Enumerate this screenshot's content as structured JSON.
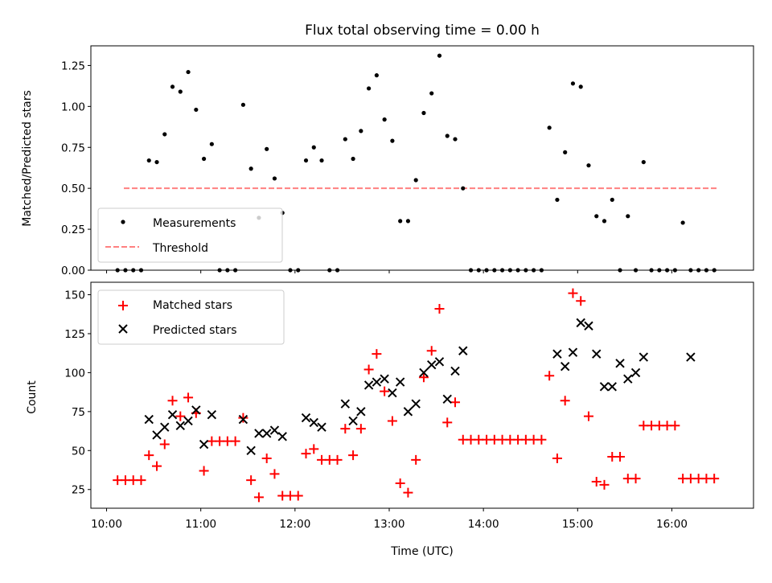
{
  "chart_data": [
    {
      "type": "scatter",
      "title": "Flux total observing time = 0.00 h",
      "xlabel": "",
      "ylabel": "Matched/Predicted stars",
      "xlim": [
        "09:50",
        "16:52"
      ],
      "ylim": [
        0,
        1.37
      ],
      "yticks": [
        "0.00",
        "0.25",
        "0.50",
        "0.75",
        "1.00",
        "1.25"
      ],
      "grid": false,
      "legend": "lower-left",
      "series": [
        {
          "name": "Measurements",
          "kind": "points",
          "color": "#000000",
          "x": [
            "10:07",
            "10:12",
            "10:17",
            "10:22",
            "10:27",
            "10:32",
            "10:37",
            "10:42",
            "10:47",
            "10:52",
            "10:57",
            "11:02",
            "11:07",
            "11:12",
            "11:17",
            "11:22",
            "11:27",
            "11:32",
            "11:37",
            "11:42",
            "11:47",
            "11:52",
            "11:57",
            "12:02",
            "12:07",
            "12:12",
            "12:17",
            "12:22",
            "12:27",
            "12:32",
            "12:37",
            "12:42",
            "12:47",
            "12:52",
            "12:57",
            "13:02",
            "13:07",
            "13:12",
            "13:17",
            "13:22",
            "13:27",
            "13:32",
            "13:37",
            "13:42",
            "13:47",
            "13:52",
            "13:57",
            "14:02",
            "14:07",
            "14:12",
            "14:17",
            "14:22",
            "14:27",
            "14:32",
            "14:37",
            "14:42",
            "14:47",
            "14:52",
            "14:57",
            "15:02",
            "15:07",
            "15:12",
            "15:17",
            "15:22",
            "15:27",
            "15:32",
            "15:37",
            "15:42",
            "15:47",
            "15:52",
            "15:57",
            "16:02",
            "16:07",
            "16:12",
            "16:17",
            "16:22",
            "16:27"
          ],
          "y": [
            0,
            0,
            0,
            0,
            0.67,
            0.66,
            0.83,
            1.12,
            1.09,
            1.21,
            0.98,
            0.68,
            0.77,
            0,
            0,
            0,
            1.01,
            0.62,
            0.32,
            0.74,
            0.56,
            0.35,
            0,
            0,
            0.67,
            0.75,
            0.67,
            0,
            0,
            0.8,
            0.68,
            0.85,
            1.11,
            1.19,
            0.92,
            0.79,
            0.3,
            0.3,
            0.55,
            0.96,
            1.08,
            1.31,
            0.82,
            0.8,
            0.5,
            0,
            0,
            0,
            0,
            0,
            0,
            0,
            0,
            0,
            0,
            0.87,
            0.43,
            0.72,
            1.14,
            1.12,
            0.64,
            0.33,
            0.3,
            0.43,
            0,
            0.33,
            0,
            0.66,
            0,
            0,
            0,
            0,
            0.29,
            0,
            0,
            0,
            0
          ]
        },
        {
          "name": "Threshold",
          "kind": "dashed-line",
          "color": "#ff8080",
          "x": [
            "10:11",
            "16:30"
          ],
          "y": [
            0.5,
            0.5
          ]
        }
      ]
    },
    {
      "type": "scatter",
      "title": "",
      "xlabel": "Time (UTC)",
      "ylabel": "Count",
      "xlim": [
        "09:50",
        "16:52"
      ],
      "ylim": [
        13,
        158
      ],
      "xticks": [
        "10:00",
        "11:00",
        "12:00",
        "13:00",
        "14:00",
        "15:00",
        "16:00"
      ],
      "yticks": [
        "25",
        "50",
        "75",
        "100",
        "125",
        "150"
      ],
      "grid": false,
      "legend": "upper-left",
      "series": [
        {
          "name": "Matched stars",
          "marker": "plus",
          "color": "#ff0000",
          "x": [
            "10:07",
            "10:12",
            "10:17",
            "10:22",
            "10:27",
            "10:32",
            "10:37",
            "10:42",
            "10:47",
            "10:52",
            "10:57",
            "11:02",
            "11:07",
            "11:12",
            "11:17",
            "11:22",
            "11:27",
            "11:32",
            "11:37",
            "11:42",
            "11:47",
            "11:52",
            "11:57",
            "12:02",
            "12:07",
            "12:12",
            "12:17",
            "12:22",
            "12:27",
            "12:32",
            "12:37",
            "12:42",
            "12:47",
            "12:52",
            "12:57",
            "13:02",
            "13:07",
            "13:12",
            "13:17",
            "13:22",
            "13:27",
            "13:32",
            "13:37",
            "13:42",
            "13:47",
            "13:52",
            "13:57",
            "14:02",
            "14:07",
            "14:12",
            "14:17",
            "14:22",
            "14:27",
            "14:32",
            "14:37",
            "14:42",
            "14:47",
            "14:52",
            "14:57",
            "15:02",
            "15:07",
            "15:12",
            "15:17",
            "15:22",
            "15:27",
            "15:32",
            "15:37",
            "15:42",
            "15:47",
            "15:52",
            "15:57",
            "16:02",
            "16:07",
            "16:12",
            "16:17",
            "16:22",
            "16:27"
          ],
          "y": [
            31,
            31,
            31,
            31,
            47,
            40,
            54,
            82,
            72,
            84,
            74,
            37,
            56,
            56,
            56,
            56,
            71,
            31,
            20,
            45,
            35,
            21,
            21,
            21,
            48,
            51,
            44,
            44,
            44,
            64,
            47,
            64,
            102,
            112,
            88,
            69,
            29,
            23,
            44,
            97,
            114,
            141,
            68,
            81,
            57,
            57,
            57,
            57,
            57,
            57,
            57,
            57,
            57,
            57,
            57,
            98,
            45,
            82,
            151,
            146,
            72,
            30,
            28,
            46,
            46,
            32,
            32,
            66,
            66,
            66,
            66,
            66,
            32,
            32,
            32,
            32,
            32
          ]
        },
        {
          "name": "Predicted stars",
          "marker": "x",
          "color": "#000000",
          "x": [
            "10:27",
            "10:32",
            "10:37",
            "10:42",
            "10:47",
            "10:52",
            "10:57",
            "11:02",
            "11:07",
            "11:27",
            "11:32",
            "11:37",
            "11:42",
            "11:47",
            "11:52",
            "12:07",
            "12:12",
            "12:17",
            "12:32",
            "12:37",
            "12:42",
            "12:47",
            "12:52",
            "12:57",
            "13:02",
            "13:07",
            "13:12",
            "13:17",
            "13:22",
            "13:27",
            "13:32",
            "13:37",
            "13:42",
            "13:47",
            "14:47",
            "14:52",
            "14:57",
            "15:02",
            "15:07",
            "15:12",
            "15:17",
            "15:22",
            "15:27",
            "15:32",
            "15:37",
            "15:42",
            "16:12"
          ],
          "y": [
            70,
            60,
            65,
            73,
            66,
            69,
            76,
            54,
            73,
            70,
            50,
            61,
            61,
            63,
            59,
            71,
            68,
            65,
            80,
            69,
            75,
            92,
            94,
            96,
            87,
            94,
            75,
            80,
            100,
            105,
            107,
            83,
            101,
            114,
            112,
            104,
            113,
            132,
            130,
            112,
            91,
            91,
            106,
            96,
            100,
            110,
            110
          ]
        }
      ]
    }
  ]
}
